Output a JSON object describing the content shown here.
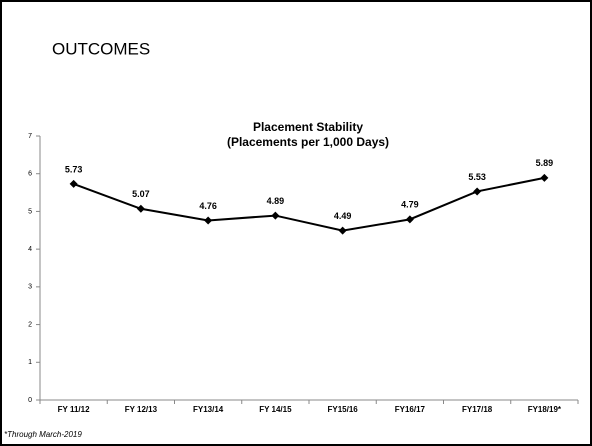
{
  "heading": "OUTCOMES",
  "footnote": "*Through March-2019",
  "chart_data": {
    "type": "line",
    "title": "Placement Stability",
    "subtitle": "(Placements per 1,000 Days)",
    "categories": [
      "FY 11/12",
      "FY 12/13",
      "FY13/14",
      "FY 14/15",
      "FY15/16",
      "FY16/17",
      "FY17/18",
      "FY18/19*"
    ],
    "values": [
      5.73,
      5.07,
      4.76,
      4.89,
      4.49,
      4.79,
      5.53,
      5.89
    ],
    "color": "#000000",
    "ylim": [
      0,
      7
    ],
    "yticks": [
      0,
      1,
      2,
      3,
      4,
      5,
      6,
      7
    ],
    "grid": false
  }
}
